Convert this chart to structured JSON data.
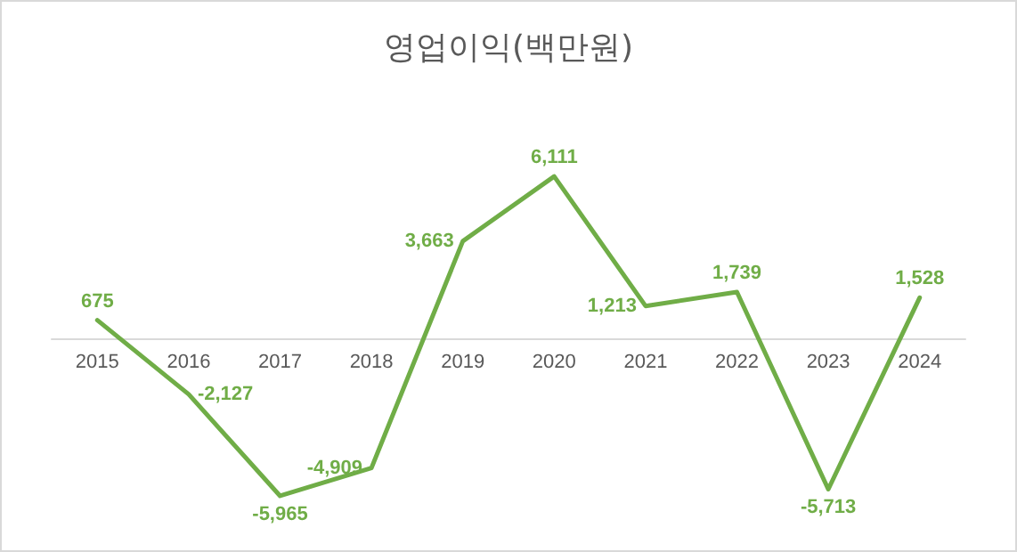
{
  "chart_data": {
    "type": "line",
    "title": "영업이익(백만원)",
    "categories": [
      "2015",
      "2016",
      "2017",
      "2018",
      "2019",
      "2020",
      "2021",
      "2022",
      "2023",
      "2024"
    ],
    "series": [
      {
        "color": "#70ad47",
        "values": [
          675,
          -2127,
          -5965,
          -4909,
          3663,
          6111,
          1213,
          1739,
          -5713,
          1528
        ],
        "value_labels": [
          "675",
          "-2,127",
          "-5,965",
          "-4,909",
          "3,663",
          "6,111",
          "1,213",
          "1,739",
          "-5,713",
          "1,528"
        ]
      }
    ],
    "grid": false,
    "tick_labels": "x",
    "marker": "none",
    "line_style": "solid"
  }
}
